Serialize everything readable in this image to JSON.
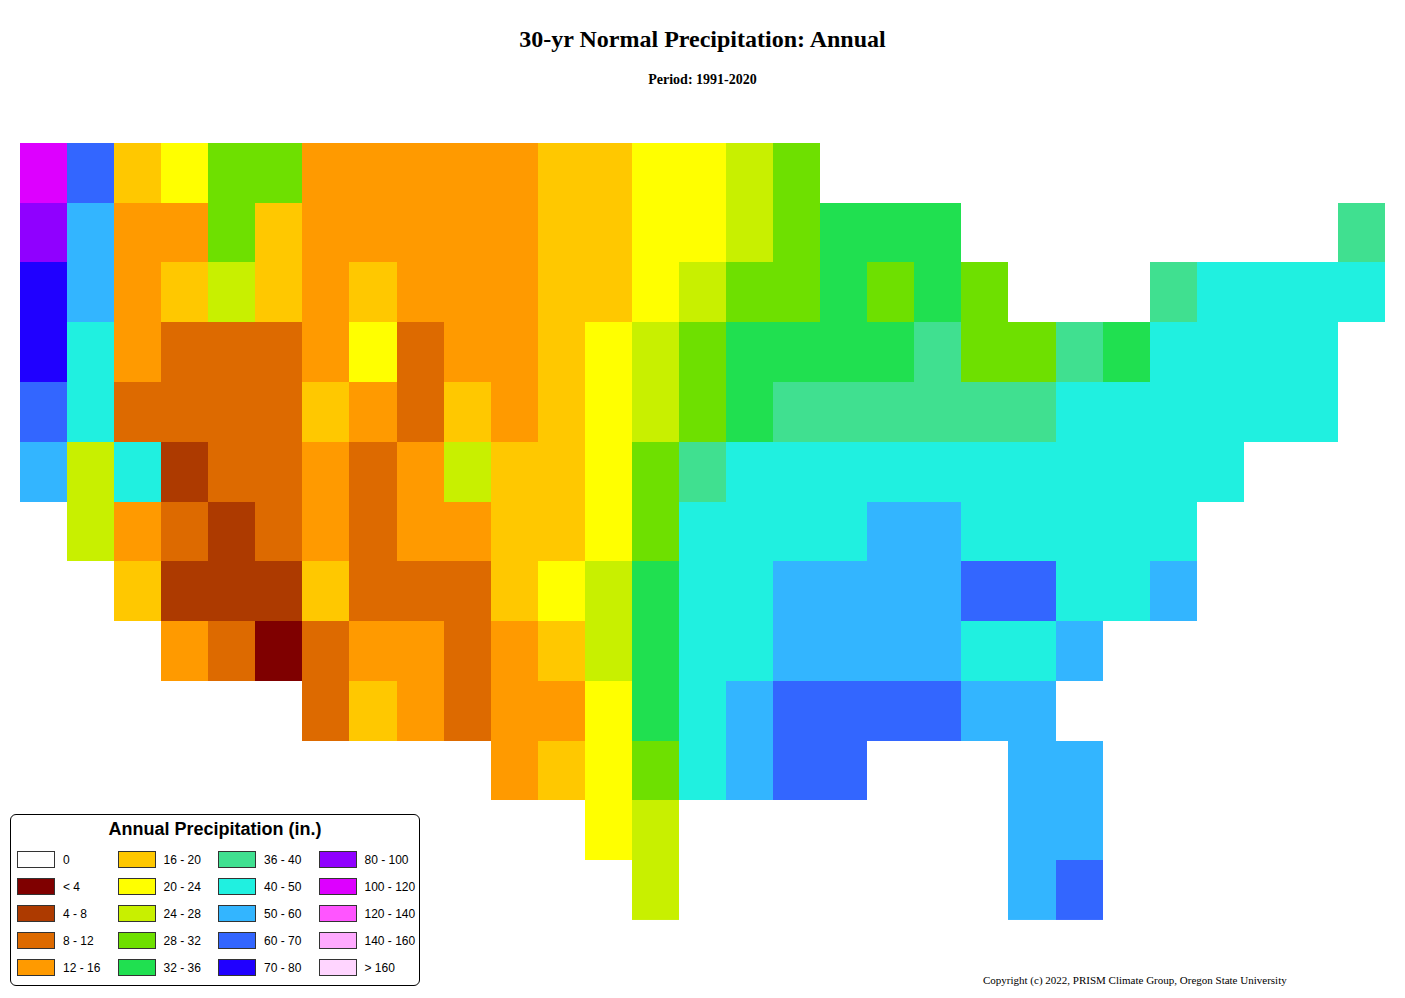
{
  "chart_data": {
    "type": "heatmap",
    "title": "30-yr Normal Precipitation: Annual",
    "subtitle": "Period: 1991-2020",
    "x": [
      -124,
      -122,
      -120,
      -118,
      -116,
      -114,
      -112,
      -110,
      -108,
      -106,
      -104,
      -102,
      -100,
      -98,
      -96,
      -94,
      -92,
      -90,
      -88,
      -86,
      -84,
      -82,
      -80,
      -78,
      -76,
      -74,
      -72,
      -70,
      -68
    ],
    "y": [
      25,
      27,
      29,
      31,
      33,
      35,
      37,
      39,
      41,
      43,
      45,
      47,
      49
    ],
    "xlim": [
      -125,
      -67
    ],
    "ylim": [
      24,
      50
    ],
    "tick_labels": false,
    "grid": false,
    "z": [
      [
        null,
        null,
        null,
        null,
        null,
        null,
        null,
        null,
        null,
        null,
        null,
        null,
        null,
        27,
        null,
        null,
        null,
        null,
        null,
        null,
        null,
        54,
        60,
        null,
        null,
        null,
        null,
        null,
        null
      ],
      [
        null,
        null,
        null,
        null,
        null,
        null,
        null,
        null,
        null,
        null,
        null,
        null,
        20,
        26,
        null,
        null,
        null,
        null,
        null,
        null,
        null,
        54,
        56,
        null,
        null,
        null,
        null,
        null,
        null
      ],
      [
        null,
        null,
        null,
        null,
        null,
        null,
        null,
        null,
        null,
        null,
        12,
        18,
        22,
        30,
        46,
        56,
        62,
        64,
        null,
        null,
        null,
        52,
        50,
        null,
        null,
        null,
        null,
        null,
        null
      ],
      [
        null,
        null,
        null,
        null,
        null,
        null,
        10,
        16,
        12,
        9,
        13,
        15,
        22,
        32,
        44,
        54,
        60,
        64,
        64,
        62,
        58,
        52,
        null,
        null,
        null,
        null,
        null,
        null,
        null
      ],
      [
        null,
        null,
        null,
        14,
        8,
        3,
        8,
        14,
        13,
        10,
        13,
        17,
        24,
        32,
        40,
        48,
        54,
        56,
        56,
        54,
        48,
        46,
        50,
        null,
        null,
        null,
        null,
        null,
        null
      ],
      [
        null,
        null,
        16,
        6,
        4,
        5,
        18,
        10,
        10,
        10,
        16,
        20,
        24,
        32,
        42,
        48,
        50,
        54,
        56,
        56,
        60,
        60,
        46,
        48,
        52,
        null,
        null,
        null,
        null
      ],
      [
        null,
        25,
        14,
        10,
        5,
        8,
        12,
        9,
        14,
        12,
        16,
        18,
        22,
        30,
        40,
        44,
        45,
        48,
        50,
        50,
        48,
        44,
        42,
        44,
        46,
        null,
        null,
        null,
        null
      ],
      [
        55,
        25,
        40,
        6,
        9,
        10,
        12,
        9,
        14,
        24,
        16,
        17,
        21,
        28,
        36,
        40,
        42,
        40,
        44,
        45,
        42,
        42,
        46,
        42,
        44,
        45,
        null,
        null,
        null
      ],
      [
        60,
        45,
        10,
        8,
        10,
        8,
        18,
        14,
        10,
        16,
        15,
        18,
        22,
        27,
        30,
        34,
        36,
        36,
        38,
        38,
        36,
        38,
        42,
        42,
        44,
        48,
        48,
        46,
        null
      ],
      [
        70,
        40,
        12,
        10,
        11,
        10,
        12,
        20,
        10,
        13,
        15,
        17,
        20,
        24,
        28,
        32,
        34,
        35,
        34,
        36,
        31,
        31,
        38,
        34,
        40,
        42,
        44,
        47,
        null
      ],
      [
        75,
        50,
        12,
        16,
        25,
        18,
        14,
        18,
        13,
        15,
        14,
        16,
        18,
        21,
        25,
        29,
        31,
        32,
        30,
        33,
        30,
        null,
        null,
        null,
        36,
        40,
        44,
        44,
        44
      ],
      [
        90,
        50,
        12,
        14,
        28,
        18,
        12,
        14,
        12,
        13,
        14,
        17,
        18,
        20,
        23,
        26,
        30,
        32,
        33,
        33,
        null,
        null,
        null,
        null,
        null,
        null,
        null,
        null,
        38
      ],
      [
        100,
        60,
        16,
        20,
        30,
        30,
        14,
        12,
        12,
        13,
        14,
        17,
        18,
        20,
        22,
        26,
        28,
        null,
        null,
        null,
        null,
        null,
        null,
        null,
        null,
        null,
        null,
        null,
        null
      ]
    ],
    "colorbar": {
      "title": "Annual Precipitation (in.)",
      "items": [
        {
          "label": "0",
          "color": "#ffffff",
          "min": 0,
          "max": 0
        },
        {
          "label": "< 4",
          "color": "#7f0000",
          "min": 0,
          "max": 4
        },
        {
          "label": "4 - 8",
          "color": "#ad3a00",
          "min": 4,
          "max": 8
        },
        {
          "label": "8 - 12",
          "color": "#dd6a00",
          "min": 8,
          "max": 12
        },
        {
          "label": "12 - 16",
          "color": "#ff9a00",
          "min": 12,
          "max": 16
        },
        {
          "label": "16 - 20",
          "color": "#ffc800",
          "min": 16,
          "max": 20
        },
        {
          "label": "20 - 24",
          "color": "#ffff00",
          "min": 20,
          "max": 24
        },
        {
          "label": "24 - 28",
          "color": "#c8f000",
          "min": 24,
          "max": 28
        },
        {
          "label": "28 - 32",
          "color": "#6ee000",
          "min": 28,
          "max": 32
        },
        {
          "label": "32 - 36",
          "color": "#20e050",
          "min": 32,
          "max": 36
        },
        {
          "label": "36 - 40",
          "color": "#40e090",
          "min": 36,
          "max": 40
        },
        {
          "label": "40 - 50",
          "color": "#20f0e0",
          "min": 40,
          "max": 50
        },
        {
          "label": "50 - 60",
          "color": "#33b5ff",
          "min": 50,
          "max": 60
        },
        {
          "label": "60 - 70",
          "color": "#3366ff",
          "min": 60,
          "max": 70
        },
        {
          "label": "70 - 80",
          "color": "#2000ff",
          "min": 70,
          "max": 80
        },
        {
          "label": "80 - 100",
          "color": "#9000ff",
          "min": 80,
          "max": 100
        },
        {
          "label": "100 - 120",
          "color": "#dd00ff",
          "min": 100,
          "max": 120
        },
        {
          "label": "120 - 140",
          "color": "#ff55ff",
          "min": 120,
          "max": 140
        },
        {
          "label": "140 - 160",
          "color": "#ffaaff",
          "min": 140,
          "max": 160
        },
        {
          "label": "> 160",
          "color": "#ffd5ff",
          "min": 160
        }
      ]
    },
    "annotations": [
      "Copyright (c) 2022, PRISM Climate Group, Oregon State University"
    ]
  }
}
